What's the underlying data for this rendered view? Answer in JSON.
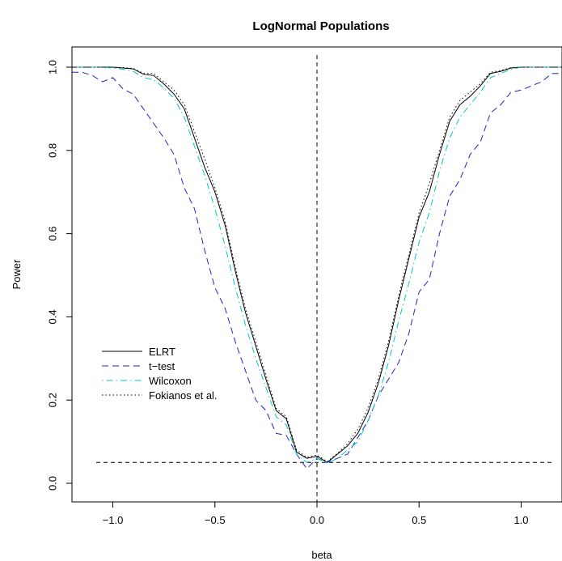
{
  "chart_data": {
    "type": "line",
    "title": "LogNormal Populations",
    "xlabel": "beta",
    "ylabel": "Power",
    "xlim": [
      -1.2,
      1.2
    ],
    "ylim": [
      0.0,
      1.0
    ],
    "xticks": [
      -1.0,
      -0.5,
      0.0,
      0.5,
      1.0
    ],
    "xtick_labels": [
      "−1.0",
      "−0.5",
      "0.0",
      "0.5",
      "1.0"
    ],
    "yticks": [
      0.0,
      0.2,
      0.4,
      0.6,
      0.8,
      1.0
    ],
    "ytick_labels": [
      "0.0",
      "0.2",
      "0.4",
      "0.6",
      "0.8",
      "1.0"
    ],
    "grid": false,
    "legend_position": "bottom-left",
    "reference_lines": [
      {
        "orientation": "vertical",
        "value": 0.0,
        "style": "dashed"
      },
      {
        "orientation": "horizontal",
        "value": 0.05,
        "style": "dashed"
      }
    ],
    "x": [
      -1.2,
      -1.15,
      -1.1,
      -1.05,
      -1.0,
      -0.95,
      -0.9,
      -0.85,
      -0.8,
      -0.75,
      -0.7,
      -0.65,
      -0.6,
      -0.55,
      -0.5,
      -0.45,
      -0.4,
      -0.35,
      -0.3,
      -0.25,
      -0.2,
      -0.15,
      -0.1,
      -0.05,
      0.0,
      0.05,
      0.1,
      0.15,
      0.2,
      0.25,
      0.3,
      0.35,
      0.4,
      0.45,
      0.5,
      0.55,
      0.6,
      0.65,
      0.7,
      0.75,
      0.8,
      0.85,
      0.9,
      0.95,
      1.0,
      1.05,
      1.1,
      1.15,
      1.2
    ],
    "series": [
      {
        "name": "ELRT",
        "color": "#000000",
        "style": "solid",
        "values": [
          1.0,
          1.0,
          1.0,
          1.0,
          1.0,
          0.998,
          0.996,
          0.983,
          0.98,
          0.96,
          0.935,
          0.9,
          0.83,
          0.76,
          0.7,
          0.62,
          0.51,
          0.41,
          0.33,
          0.25,
          0.175,
          0.155,
          0.075,
          0.06,
          0.065,
          0.05,
          0.07,
          0.09,
          0.12,
          0.17,
          0.24,
          0.33,
          0.44,
          0.54,
          0.64,
          0.7,
          0.79,
          0.87,
          0.91,
          0.93,
          0.955,
          0.985,
          0.99,
          0.998,
          1.0,
          1.0,
          1.0,
          1.0,
          1.0
        ]
      },
      {
        "name": "t−test",
        "color": "#2323c8",
        "style": "dashed",
        "values": [
          0.988,
          0.988,
          0.98,
          0.965,
          0.975,
          0.948,
          0.935,
          0.9,
          0.865,
          0.83,
          0.79,
          0.71,
          0.66,
          0.56,
          0.47,
          0.42,
          0.34,
          0.27,
          0.2,
          0.175,
          0.12,
          0.115,
          0.07,
          0.035,
          0.06,
          0.05,
          0.06,
          0.07,
          0.11,
          0.15,
          0.21,
          0.25,
          0.29,
          0.36,
          0.46,
          0.49,
          0.6,
          0.69,
          0.73,
          0.79,
          0.82,
          0.89,
          0.91,
          0.94,
          0.945,
          0.955,
          0.965,
          0.985,
          0.985
        ]
      },
      {
        "name": "Wilcoxon",
        "color": "#00c8c8",
        "style": "dotdash",
        "values": [
          1.0,
          1.0,
          1.0,
          1.0,
          0.998,
          0.995,
          0.99,
          0.975,
          0.97,
          0.95,
          0.925,
          0.88,
          0.81,
          0.74,
          0.66,
          0.57,
          0.47,
          0.38,
          0.3,
          0.23,
          0.16,
          0.14,
          0.07,
          0.05,
          0.06,
          0.048,
          0.06,
          0.08,
          0.1,
          0.15,
          0.21,
          0.29,
          0.39,
          0.48,
          0.58,
          0.65,
          0.75,
          0.83,
          0.88,
          0.91,
          0.94,
          0.975,
          0.985,
          0.995,
          1.0,
          1.0,
          1.0,
          1.0,
          1.0
        ]
      },
      {
        "name": "Fokianos et al.",
        "color": "#000000",
        "style": "dotted",
        "values": [
          1.0,
          1.0,
          1.0,
          1.0,
          1.0,
          0.999,
          0.997,
          0.985,
          0.985,
          0.965,
          0.945,
          0.91,
          0.845,
          0.78,
          0.71,
          0.63,
          0.52,
          0.42,
          0.34,
          0.26,
          0.18,
          0.16,
          0.08,
          0.062,
          0.068,
          0.052,
          0.072,
          0.095,
          0.13,
          0.18,
          0.25,
          0.34,
          0.45,
          0.55,
          0.65,
          0.72,
          0.8,
          0.88,
          0.92,
          0.94,
          0.96,
          0.988,
          0.992,
          0.999,
          1.0,
          1.0,
          1.0,
          1.0,
          1.0
        ]
      }
    ]
  }
}
